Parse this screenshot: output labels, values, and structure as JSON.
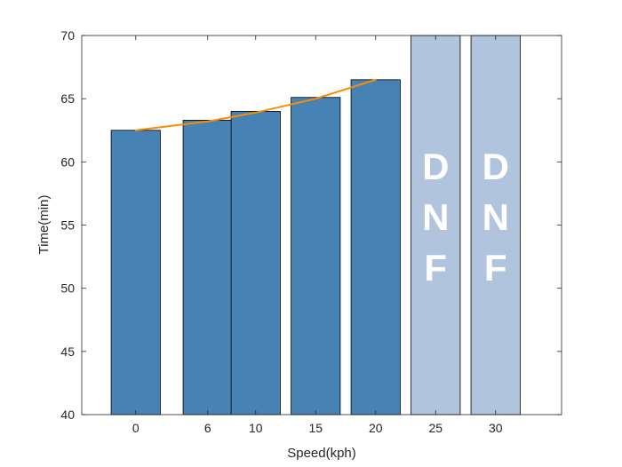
{
  "chart_data": {
    "type": "bar",
    "xlabel": "Speed(kph)",
    "ylabel": "Time(min)",
    "ylim": [
      40,
      70
    ],
    "yticks": [
      40,
      45,
      50,
      55,
      60,
      65,
      70
    ],
    "grid": false,
    "box": true,
    "bars": [
      {
        "x": 0,
        "value": 62.5,
        "status": "finished"
      },
      {
        "x": 6,
        "value": 63.3,
        "status": "finished"
      },
      {
        "x": 10,
        "value": 64.0,
        "status": "finished"
      },
      {
        "x": 15,
        "value": 65.1,
        "status": "finished"
      },
      {
        "x": 20,
        "value": 66.5,
        "status": "finished"
      },
      {
        "x": 25,
        "value": 70,
        "status": "DNF"
      },
      {
        "x": 30,
        "value": 70,
        "status": "DNF"
      }
    ],
    "dnf_text": "DNF",
    "trend_line": {
      "x": [
        0,
        6,
        10,
        15,
        20
      ],
      "y": [
        62.5,
        63.2,
        63.9,
        65.0,
        66.5
      ]
    },
    "colors": {
      "finished_bar": "#4682b4",
      "dnf_bar": "#b0c4de",
      "trend": "#ff8c00",
      "axis": "#262626",
      "dnf_text": "#ffffff"
    }
  }
}
